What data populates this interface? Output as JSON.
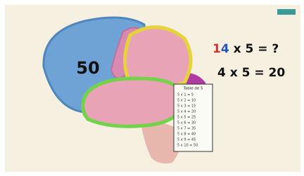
{
  "brain_label": "50",
  "question": {
    "first_digit": "1",
    "second_digit": "4",
    "rest": " x 5 = ?"
  },
  "answer": "4 x 5 = 20",
  "table": {
    "title": "Table de 5",
    "rows": [
      "5 x 1 = 5",
      "5 x 2 = 10",
      "5 x 3 = 15",
      "5 x 4 = 20",
      "5 x 5 = 25",
      "5 x 6 = 30",
      "5 x 7 = 35",
      "5 x 8 = 40",
      "5 x 9 = 45",
      "5 x 10 = 50"
    ]
  }
}
